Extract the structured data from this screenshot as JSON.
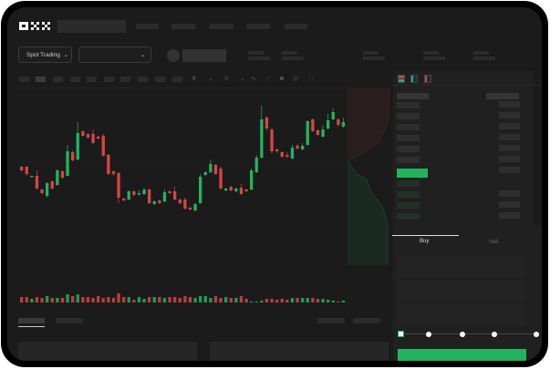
{
  "brand": {
    "logo_text": "OKX"
  },
  "toolbar": {
    "market_selector": "Spot Trading"
  },
  "trade": {
    "tabs": [
      {
        "label": "Buy",
        "active": true
      },
      {
        "label": "Sell",
        "active": false
      }
    ],
    "slider_value_percent": 0
  },
  "colors": {
    "up": "#22b35e",
    "down": "#d64545",
    "background": "#1b1b1b",
    "accent": "#22b35e"
  },
  "candles": [
    [
      118,
      114,
      119,
      113
    ],
    [
      118,
      110,
      119,
      108
    ],
    [
      107,
      108,
      108,
      107
    ],
    [
      108,
      94,
      114,
      93
    ],
    [
      93,
      89,
      94,
      88
    ],
    [
      86,
      100,
      101,
      84
    ],
    [
      102,
      94,
      103,
      93
    ],
    [
      98,
      114,
      115,
      97
    ],
    [
      113,
      106,
      114,
      105
    ],
    [
      108,
      135,
      142,
      107
    ],
    [
      134,
      125,
      136,
      124
    ],
    [
      126,
      155,
      167,
      125
    ],
    [
      157,
      152,
      158,
      151
    ],
    [
      154,
      150,
      155,
      149
    ],
    [
      154,
      144,
      159,
      143
    ],
    [
      151,
      149,
      152,
      148
    ],
    [
      152,
      130,
      154,
      129
    ],
    [
      131,
      110,
      132,
      109
    ],
    [
      113,
      110,
      114,
      108
    ],
    [
      111,
      84,
      112,
      78
    ],
    [
      83,
      81,
      84,
      80
    ],
    [
      82,
      91,
      92,
      81
    ],
    [
      91,
      87,
      92,
      86
    ],
    [
      88,
      89,
      92,
      86
    ],
    [
      88,
      93,
      95,
      87
    ],
    [
      93,
      78,
      94,
      77
    ],
    [
      77,
      80,
      81,
      76
    ],
    [
      81,
      78,
      82,
      77
    ],
    [
      80,
      90,
      93,
      79
    ],
    [
      91,
      89,
      92,
      88
    ],
    [
      91,
      82,
      96,
      81
    ],
    [
      82,
      78,
      83,
      77
    ],
    [
      82,
      72,
      84,
      71
    ],
    [
      73,
      71,
      74,
      70
    ],
    [
      70,
      77,
      78,
      69
    ],
    [
      78,
      107,
      110,
      77
    ],
    [
      109,
      112,
      113,
      108
    ],
    [
      112,
      121,
      126,
      111
    ],
    [
      120,
      110,
      121,
      109
    ],
    [
      116,
      94,
      118,
      93
    ],
    [
      92,
      94,
      95,
      91
    ],
    [
      96,
      92,
      97,
      91
    ],
    [
      91,
      94,
      95,
      90
    ],
    [
      95,
      88,
      99,
      87
    ],
    [
      93,
      91,
      94,
      90
    ],
    [
      93,
      114,
      116,
      92
    ],
    [
      112,
      128,
      131,
      111
    ],
    [
      128,
      170,
      185,
      127
    ],
    [
      172,
      160,
      173,
      157
    ],
    [
      159,
      135,
      160,
      132
    ],
    [
      137,
      135,
      138,
      133
    ],
    [
      134,
      129,
      135,
      128
    ],
    [
      131,
      129,
      134,
      128
    ],
    [
      127,
      139,
      142,
      126
    ],
    [
      141,
      138,
      143,
      137
    ],
    [
      137,
      141,
      144,
      136
    ],
    [
      142,
      168,
      169,
      141
    ],
    [
      170,
      157,
      171,
      156
    ],
    [
      158,
      153,
      159,
      152
    ],
    [
      151,
      159,
      164,
      150
    ],
    [
      160,
      169,
      176,
      159
    ],
    [
      170,
      178,
      182,
      169
    ],
    [
      170,
      164,
      171,
      162
    ],
    [
      162,
      167,
      172,
      161
    ]
  ],
  "volumes": [
    6,
    6,
    4,
    6,
    5,
    7,
    5,
    5,
    5,
    9,
    7,
    9,
    6,
    6,
    5,
    7,
    5,
    6,
    5,
    10,
    6,
    6,
    3,
    6,
    4,
    6,
    6,
    6,
    5,
    6,
    6,
    5,
    7,
    6,
    5,
    7,
    7,
    5,
    7,
    5,
    6,
    5,
    5,
    7,
    4,
    1,
    1,
    2,
    4,
    4,
    3,
    4,
    3,
    5,
    5,
    5,
    5,
    5,
    4,
    4,
    3,
    2,
    1,
    2
  ]
}
